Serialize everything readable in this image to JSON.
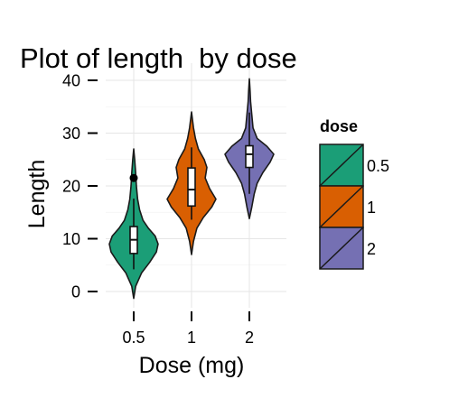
{
  "chart_data": {
    "type": "violin",
    "title": "Plot of length  by dose",
    "xlabel": "Dose (mg)",
    "ylabel": "Length",
    "categories": [
      "0.5",
      "1",
      "2"
    ],
    "yticks": [
      0,
      10,
      20,
      30,
      40
    ],
    "ylim": [
      -3.5,
      40
    ],
    "grid": true,
    "legend": {
      "title": "dose",
      "placement": "right",
      "labels": [
        "0.5",
        "1",
        "2"
      ]
    },
    "colors": [
      "#1b9e77",
      "#d95f02",
      "#7570b3"
    ],
    "series": [
      {
        "name": "0.5",
        "min": -1.3,
        "max": 27,
        "box": {
          "q1": 7.2,
          "median": 9.8,
          "q3": 12.3,
          "whisker_low": 4.2,
          "whisker_high": 17.6
        },
        "outliers": [
          21.5
        ],
        "density": [
          [
            -1.3,
            0
          ],
          [
            1,
            0.08
          ],
          [
            3.5,
            0.32
          ],
          [
            5.5,
            0.65
          ],
          [
            7.5,
            0.93
          ],
          [
            9,
            1.0
          ],
          [
            10.5,
            0.88
          ],
          [
            12,
            0.6
          ],
          [
            13.5,
            0.38
          ],
          [
            15.5,
            0.24
          ],
          [
            17.5,
            0.16
          ],
          [
            20,
            0.11
          ],
          [
            22.5,
            0.08
          ],
          [
            25,
            0.04
          ],
          [
            27,
            0
          ]
        ]
      },
      {
        "name": "1",
        "min": 7,
        "max": 34,
        "box": {
          "q1": 16.2,
          "median": 19.3,
          "q3": 23.4,
          "whisker_low": 13.6,
          "whisker_high": 27.3
        },
        "outliers": [],
        "density": [
          [
            7,
            0
          ],
          [
            9.5,
            0.08
          ],
          [
            12,
            0.22
          ],
          [
            14,
            0.48
          ],
          [
            16,
            0.83
          ],
          [
            17.5,
            1.0
          ],
          [
            19.5,
            0.74
          ],
          [
            21.5,
            0.56
          ],
          [
            23.5,
            0.63
          ],
          [
            25,
            0.52
          ],
          [
            27,
            0.28
          ],
          [
            29,
            0.16
          ],
          [
            31,
            0.08
          ],
          [
            34,
            0
          ]
        ]
      },
      {
        "name": "2",
        "min": 13.8,
        "max": 40.3,
        "box": {
          "q1": 23.5,
          "median": 26,
          "q3": 27.6,
          "whisker_low": 18.5,
          "whisker_high": 33.9
        },
        "outliers": [],
        "density": [
          [
            13.8,
            0
          ],
          [
            16,
            0.1
          ],
          [
            18.5,
            0.2
          ],
          [
            20.5,
            0.32
          ],
          [
            22.5,
            0.55
          ],
          [
            24.5,
            0.85
          ],
          [
            26,
            1.0
          ],
          [
            27.5,
            0.72
          ],
          [
            29,
            0.32
          ],
          [
            31,
            0.15
          ],
          [
            33.5,
            0.1
          ],
          [
            36,
            0.05
          ],
          [
            38,
            0.03
          ],
          [
            40.3,
            0
          ]
        ]
      }
    ]
  }
}
